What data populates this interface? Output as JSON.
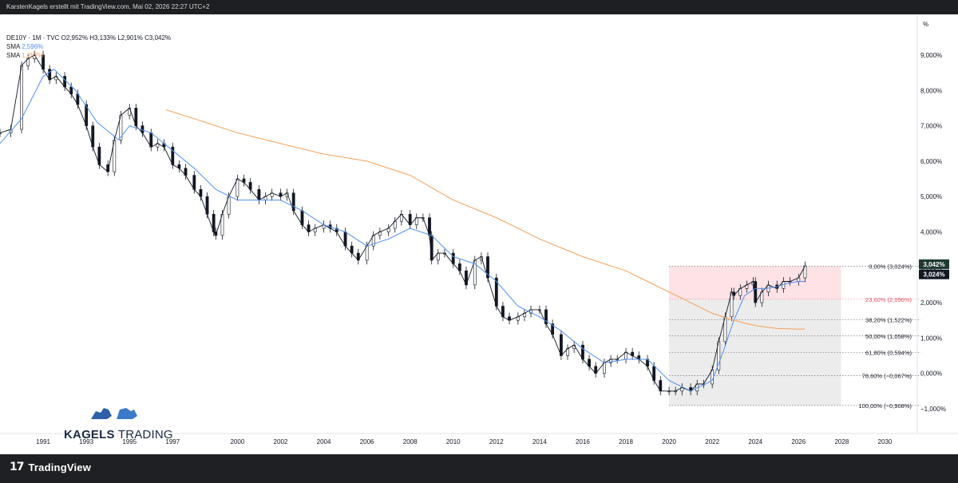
{
  "header": {
    "caption": "KarstenKagels erstellt mit TradingView.com, Mai 02, 2026 22:27 UTC+2"
  },
  "legend": {
    "line1": "DE10Y · 1M · TVC  O2,952%  H3,133%  L2,901%  C3,042%",
    "sma1_label": "SMA",
    "sma1_value": "2,596%",
    "sma2_label": "SMA",
    "sma2_value": "1,257%"
  },
  "branding": {
    "watermark_bold": "KAGELS",
    "watermark_rest": "TRADING",
    "footer_logo_text": "TradingView",
    "footer_logo_mark": "17"
  },
  "colors": {
    "candle": "#131722",
    "sma_short": "#4f8ff0",
    "sma_long": "#f5a15b",
    "fib_zone_top": "#fde2e6",
    "fib_zone_bottom": "#ececec",
    "price_badge": "#1f3a30"
  },
  "chart_data": {
    "type": "line",
    "title": "",
    "xlabel": "",
    "ylabel": "",
    "y_unit_label": "%",
    "xlim": [
      1989,
      2031.5
    ],
    "ylim": [
      -1.7,
      10.15
    ],
    "x_ticks": [
      1991,
      1993,
      1995,
      1997,
      2000,
      2002,
      2004,
      2006,
      2008,
      2010,
      2012,
      2014,
      2016,
      2018,
      2020,
      2022,
      2024,
      2026,
      2028,
      2030
    ],
    "x_tick_labels": [
      "1991",
      "1993",
      "1995",
      "1997",
      "2000",
      "2002",
      "2004",
      "2006",
      "2008",
      "2010",
      "2012",
      "2014",
      "2016",
      "2018",
      "2020",
      "2022",
      "2024",
      "2026",
      "2028",
      "2030"
    ],
    "y_ticks": [
      -1,
      0,
      1,
      2,
      3,
      4,
      5,
      6,
      7,
      8,
      9
    ],
    "y_tick_labels": [
      "−1,000%",
      "0,000%",
      "1,000%",
      "2,000%",
      "3,000%",
      "4,000%",
      "5,000%",
      "6,000%",
      "7,000%",
      "8,000%",
      "9,000%"
    ],
    "grid": false,
    "series": [
      {
        "name": "DE10Y",
        "x": [
          1989.0,
          1989.5,
          1990.0,
          1990.3,
          1990.6,
          1991.0,
          1991.3,
          1991.6,
          1992.0,
          1992.3,
          1992.6,
          1993.0,
          1993.3,
          1993.6,
          1994.0,
          1994.3,
          1994.6,
          1995.0,
          1995.3,
          1995.6,
          1996.0,
          1996.3,
          1996.6,
          1997.0,
          1997.3,
          1997.6,
          1998.0,
          1998.3,
          1998.6,
          1998.9,
          1999.0,
          1999.3,
          1999.6,
          2000.0,
          2000.3,
          2000.6,
          2001.0,
          2001.3,
          2001.6,
          2002.0,
          2002.3,
          2002.6,
          2003.0,
          2003.3,
          2003.6,
          2004.0,
          2004.3,
          2004.6,
          2005.0,
          2005.3,
          2005.6,
          2006.0,
          2006.3,
          2006.6,
          2007.0,
          2007.3,
          2007.6,
          2008.0,
          2008.3,
          2008.6,
          2008.9,
          2009.0,
          2009.3,
          2009.6,
          2010.0,
          2010.3,
          2010.6,
          2011.0,
          2011.3,
          2011.6,
          2012.0,
          2012.3,
          2012.6,
          2013.0,
          2013.3,
          2013.6,
          2014.0,
          2014.3,
          2014.6,
          2015.0,
          2015.3,
          2015.6,
          2016.0,
          2016.3,
          2016.6,
          2017.0,
          2017.3,
          2017.6,
          2018.0,
          2018.3,
          2018.6,
          2019.0,
          2019.3,
          2019.6,
          2020.0,
          2020.3,
          2020.6,
          2021.0,
          2021.3,
          2021.6,
          2022.0,
          2022.3,
          2022.6,
          2022.9,
          2023.0,
          2023.3,
          2023.6,
          2023.9,
          2024.0,
          2024.3,
          2024.6,
          2025.0,
          2025.3,
          2025.6,
          2026.0,
          2026.3
        ],
        "values": [
          6.8,
          6.9,
          8.7,
          8.9,
          9.0,
          8.6,
          8.3,
          8.4,
          8.1,
          7.9,
          7.6,
          7.0,
          6.4,
          5.9,
          5.7,
          6.6,
          7.3,
          7.5,
          7.0,
          6.8,
          6.4,
          6.5,
          6.4,
          5.9,
          5.8,
          5.6,
          5.2,
          5.0,
          4.5,
          4.0,
          3.9,
          4.5,
          5.0,
          5.5,
          5.4,
          5.2,
          4.9,
          5.0,
          5.1,
          5.0,
          5.1,
          4.6,
          4.2,
          4.0,
          4.1,
          4.2,
          4.1,
          4.0,
          3.6,
          3.4,
          3.2,
          3.6,
          3.9,
          4.0,
          4.1,
          4.3,
          4.5,
          4.2,
          4.4,
          4.4,
          3.9,
          3.2,
          3.4,
          3.4,
          3.1,
          2.9,
          2.5,
          3.2,
          3.3,
          2.7,
          1.9,
          1.6,
          1.5,
          1.6,
          1.7,
          1.8,
          1.8,
          1.4,
          1.1,
          0.5,
          0.7,
          0.8,
          0.4,
          0.2,
          0.0,
          0.3,
          0.4,
          0.4,
          0.6,
          0.5,
          0.4,
          0.2,
          -0.2,
          -0.5,
          -0.5,
          -0.5,
          -0.4,
          -0.5,
          -0.3,
          -0.3,
          0.1,
          0.9,
          1.6,
          2.3,
          2.2,
          2.4,
          2.5,
          2.6,
          2.0,
          2.3,
          2.5,
          2.4,
          2.6,
          2.6,
          2.7,
          3.04
        ]
      },
      {
        "name": "SMA",
        "x": [
          1989.0,
          1990.0,
          1991.0,
          1991.5,
          1992.5,
          1993.5,
          1994.5,
          1995.0,
          1996.0,
          1997.0,
          1998.0,
          1999.0,
          2000.0,
          2001.0,
          2002.0,
          2003.0,
          2004.0,
          2005.0,
          2006.0,
          2007.0,
          2008.0,
          2009.0,
          2010.0,
          2011.0,
          2012.0,
          2013.0,
          2014.0,
          2015.0,
          2016.0,
          2017.0,
          2018.0,
          2019.0,
          2020.0,
          2021.0,
          2022.0,
          2022.5,
          2023.0,
          2023.5,
          2024.0,
          2024.5,
          2025.0,
          2025.5,
          2026.0,
          2026.3
        ],
        "values": [
          6.5,
          7.2,
          8.4,
          8.6,
          8.0,
          7.1,
          6.6,
          7.0,
          6.8,
          6.3,
          5.8,
          5.2,
          4.9,
          4.9,
          4.9,
          4.6,
          4.2,
          4.0,
          3.6,
          3.8,
          4.1,
          3.9,
          3.3,
          3.1,
          2.6,
          1.9,
          1.6,
          1.2,
          0.7,
          0.3,
          0.4,
          0.4,
          -0.2,
          -0.5,
          -0.2,
          0.6,
          1.5,
          2.2,
          2.4,
          2.4,
          2.45,
          2.55,
          2.6,
          2.596
        ]
      },
      {
        "name": "SMA",
        "x": [
          1996.7,
          1998.0,
          2000.0,
          2002.0,
          2004.0,
          2006.0,
          2008.0,
          2010.0,
          2012.0,
          2014.0,
          2016.0,
          2018.0,
          2019.0,
          2020.0,
          2021.0,
          2022.0,
          2023.0,
          2024.0,
          2025.0,
          2026.0,
          2026.3
        ],
        "values": [
          7.45,
          7.2,
          6.8,
          6.5,
          6.2,
          6.0,
          5.6,
          4.9,
          4.4,
          3.8,
          3.3,
          2.9,
          2.6,
          2.3,
          2.0,
          1.7,
          1.5,
          1.35,
          1.27,
          1.25,
          1.257
        ]
      }
    ],
    "fib_levels": [
      {
        "label": "0,00% (3,024%)",
        "value": 3.024
      },
      {
        "label": "23,60% (2,096%)",
        "value": 2.096
      },
      {
        "label": "38,20% (1,522%)",
        "value": 1.522
      },
      {
        "label": "50,00% (1,058%)",
        "value": 1.058
      },
      {
        "label": "61,80% (0,594%)",
        "value": 0.594
      },
      {
        "label": "78,60% (−0,067%)",
        "value": -0.067
      },
      {
        "label": "100,00% (−0,908%)",
        "value": -0.908
      }
    ],
    "fib_range_x": [
      2020.0,
      2026.3
    ],
    "price_badges": [
      {
        "label": "3,042%",
        "value": 3.042
      },
      {
        "label": "3,024%",
        "value": 3.024
      }
    ]
  }
}
